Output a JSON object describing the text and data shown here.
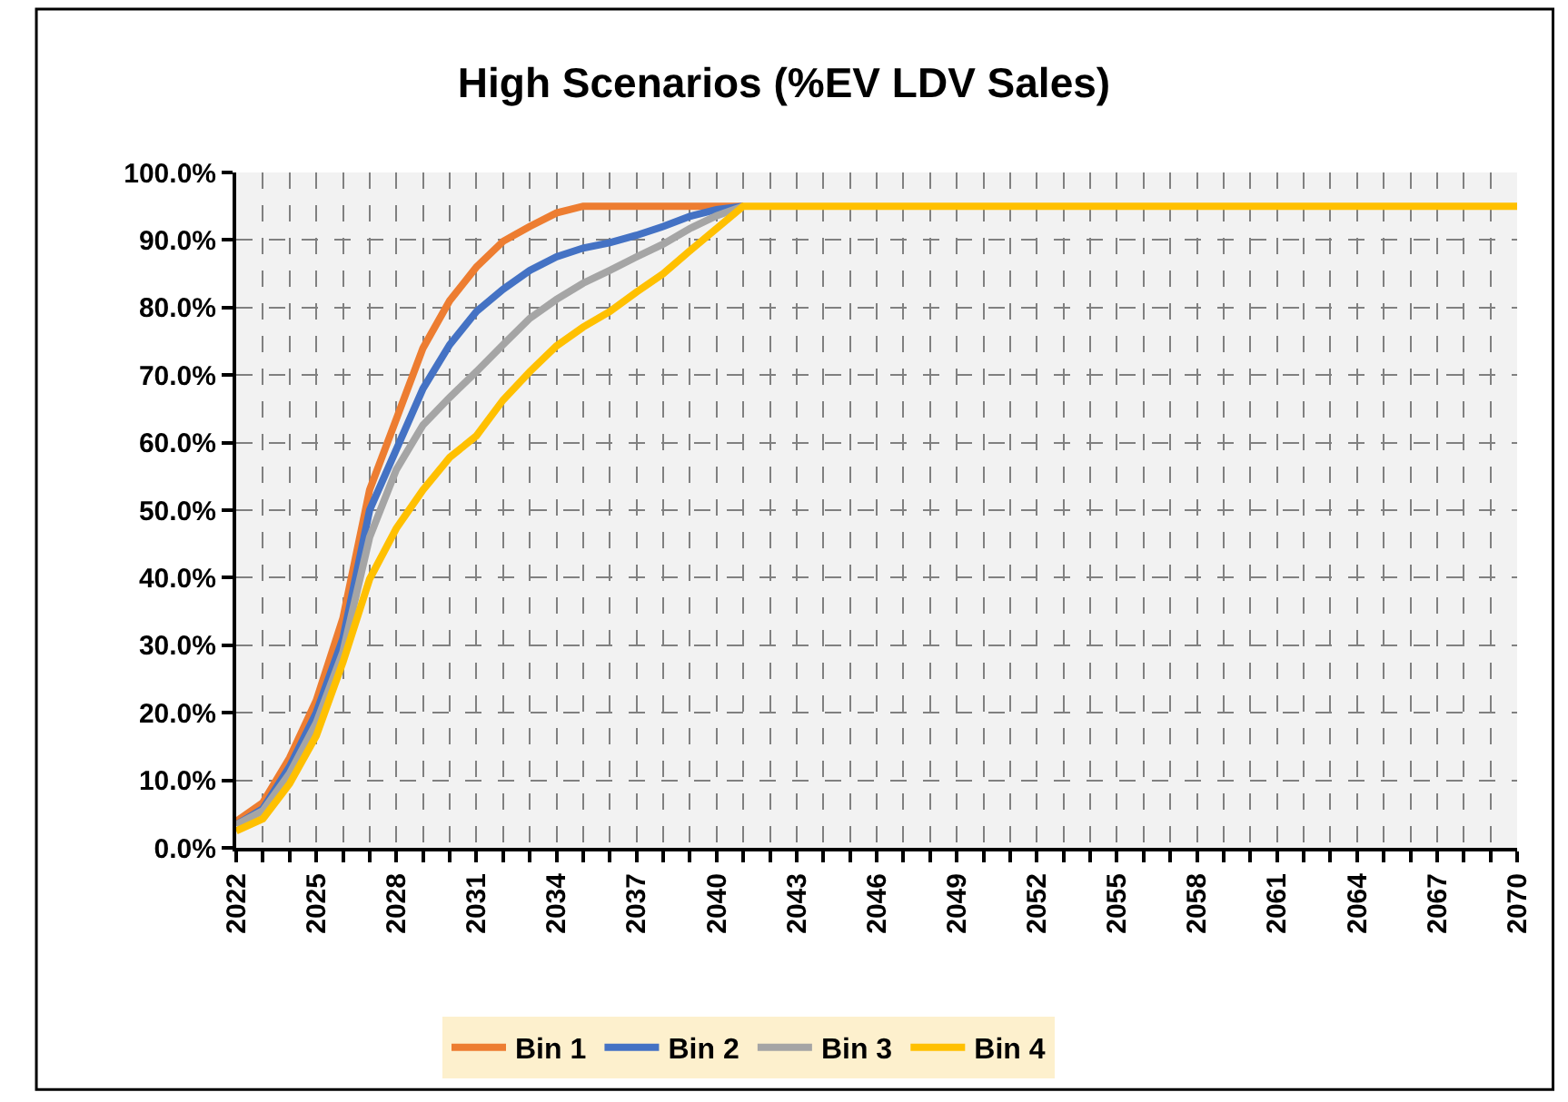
{
  "chart_data": {
    "type": "line",
    "title": "High Scenarios (%EV LDV Sales)",
    "x": [
      2022,
      2023,
      2024,
      2025,
      2026,
      2027,
      2028,
      2029,
      2030,
      2031,
      2032,
      2033,
      2034,
      2035,
      2036,
      2037,
      2038,
      2039,
      2040,
      2041,
      2042,
      2043,
      2044,
      2045,
      2046,
      2047,
      2048,
      2049,
      2050,
      2051,
      2052,
      2053,
      2054,
      2055,
      2056,
      2057,
      2058,
      2059,
      2060,
      2061,
      2062,
      2063,
      2064,
      2065,
      2066,
      2067,
      2068,
      2069,
      2070
    ],
    "series": [
      {
        "name": "Bin 1",
        "color": "#ed7d31",
        "values": [
          3.9,
          6.7,
          13.3,
          21.8,
          34,
          53,
          63.5,
          74,
          81,
          86,
          89.8,
          92,
          94,
          95,
          95,
          95,
          95,
          95,
          95,
          95,
          null,
          null,
          null,
          null,
          null,
          null,
          null,
          null,
          null,
          null,
          null,
          null,
          null,
          null,
          null,
          null,
          null,
          null,
          null,
          null,
          null,
          null,
          null,
          null,
          null,
          null,
          null,
          null,
          null
        ]
      },
      {
        "name": "Bin 2",
        "color": "#4472c4",
        "values": [
          3.4,
          5.8,
          12,
          20,
          31,
          50,
          59,
          68,
          74.5,
          79.4,
          82.7,
          85.5,
          87.5,
          88.8,
          89.6,
          90.7,
          92,
          93.5,
          94.5,
          95,
          null,
          null,
          null,
          null,
          null,
          null,
          null,
          null,
          null,
          null,
          null,
          null,
          null,
          null,
          null,
          null,
          null,
          null,
          null,
          null,
          null,
          null,
          null,
          null,
          null,
          null,
          null,
          null,
          null
        ]
      },
      {
        "name": "Bin 3",
        "color": "#a5a5a5",
        "values": [
          3.4,
          5.5,
          11,
          18.5,
          29,
          46,
          56,
          62.6,
          66.7,
          70.5,
          74.5,
          78.4,
          81.2,
          83.6,
          85.5,
          87.5,
          89.4,
          91.7,
          93.6,
          95,
          null,
          null,
          null,
          null,
          null,
          null,
          null,
          null,
          null,
          null,
          null,
          null,
          null,
          null,
          null,
          null,
          null,
          null,
          null,
          null,
          null,
          null,
          null,
          null,
          null,
          null,
          null,
          null,
          null
        ]
      },
      {
        "name": "Bin 4",
        "color": "#ffc000",
        "values": [
          2.5,
          4.3,
          9.5,
          16.6,
          27.5,
          39.8,
          47.3,
          53,
          57.8,
          61,
          66.3,
          70.5,
          74.3,
          77.1,
          79.4,
          82.3,
          85,
          88.4,
          91.7,
          95,
          95,
          95,
          95,
          95,
          95,
          95,
          95,
          95,
          95,
          95,
          95,
          95,
          95,
          95,
          95,
          95,
          95,
          95,
          95,
          95,
          95,
          95,
          95,
          95,
          95,
          95,
          95,
          95,
          95
        ]
      }
    ],
    "xlim": [
      2022,
      2070
    ],
    "xticks": [
      2022,
      2025,
      2028,
      2031,
      2034,
      2037,
      2040,
      2043,
      2046,
      2049,
      2052,
      2055,
      2058,
      2061,
      2064,
      2067,
      2070
    ],
    "ylim": [
      0,
      100
    ],
    "yticks": [
      {
        "value": 0,
        "label": "0.0%"
      },
      {
        "value": 10,
        "label": "10.0%"
      },
      {
        "value": 20,
        "label": "20.0%"
      },
      {
        "value": 30,
        "label": "30.0%"
      },
      {
        "value": 40,
        "label": "40.0%"
      },
      {
        "value": 50,
        "label": "50.0%"
      },
      {
        "value": 60,
        "label": "60.0%"
      },
      {
        "value": 70,
        "label": "70.0%"
      },
      {
        "value": 80,
        "label": "80.0%"
      },
      {
        "value": 90,
        "label": "90.0%"
      },
      {
        "value": 100,
        "label": "100.0%"
      }
    ],
    "grid": true,
    "legend": "bottom",
    "marker": "none",
    "line_style": "solid"
  }
}
